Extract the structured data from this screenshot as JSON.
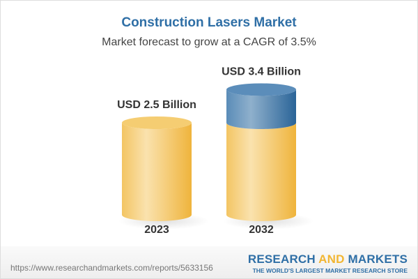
{
  "header": {
    "title": "Construction Lasers Market",
    "subtitle": "Market forecast to grow at a CAGR of 3.5%"
  },
  "chart_data": {
    "type": "bar",
    "style": "3d-cylinder",
    "title": "Construction Lasers Market",
    "subtitle": "Market forecast to grow at a CAGR of 3.5%",
    "categories": [
      "2023",
      "2032"
    ],
    "values": [
      2.5,
      3.4
    ],
    "unit": "USD Billion",
    "data_labels": [
      "USD 2.5 Billion",
      "USD 3.4 Billion"
    ],
    "colors": {
      "base": "#f2c15a",
      "growth": "#3a75a8"
    }
  },
  "footer": {
    "url": "https://www.researchandmarkets.com/reports/5633156",
    "logo_part1": "RESEARCH ",
    "logo_part2": "AND",
    "logo_part3": " MARKETS",
    "tagline": "THE WORLD'S LARGEST MARKET RESEARCH STORE"
  }
}
